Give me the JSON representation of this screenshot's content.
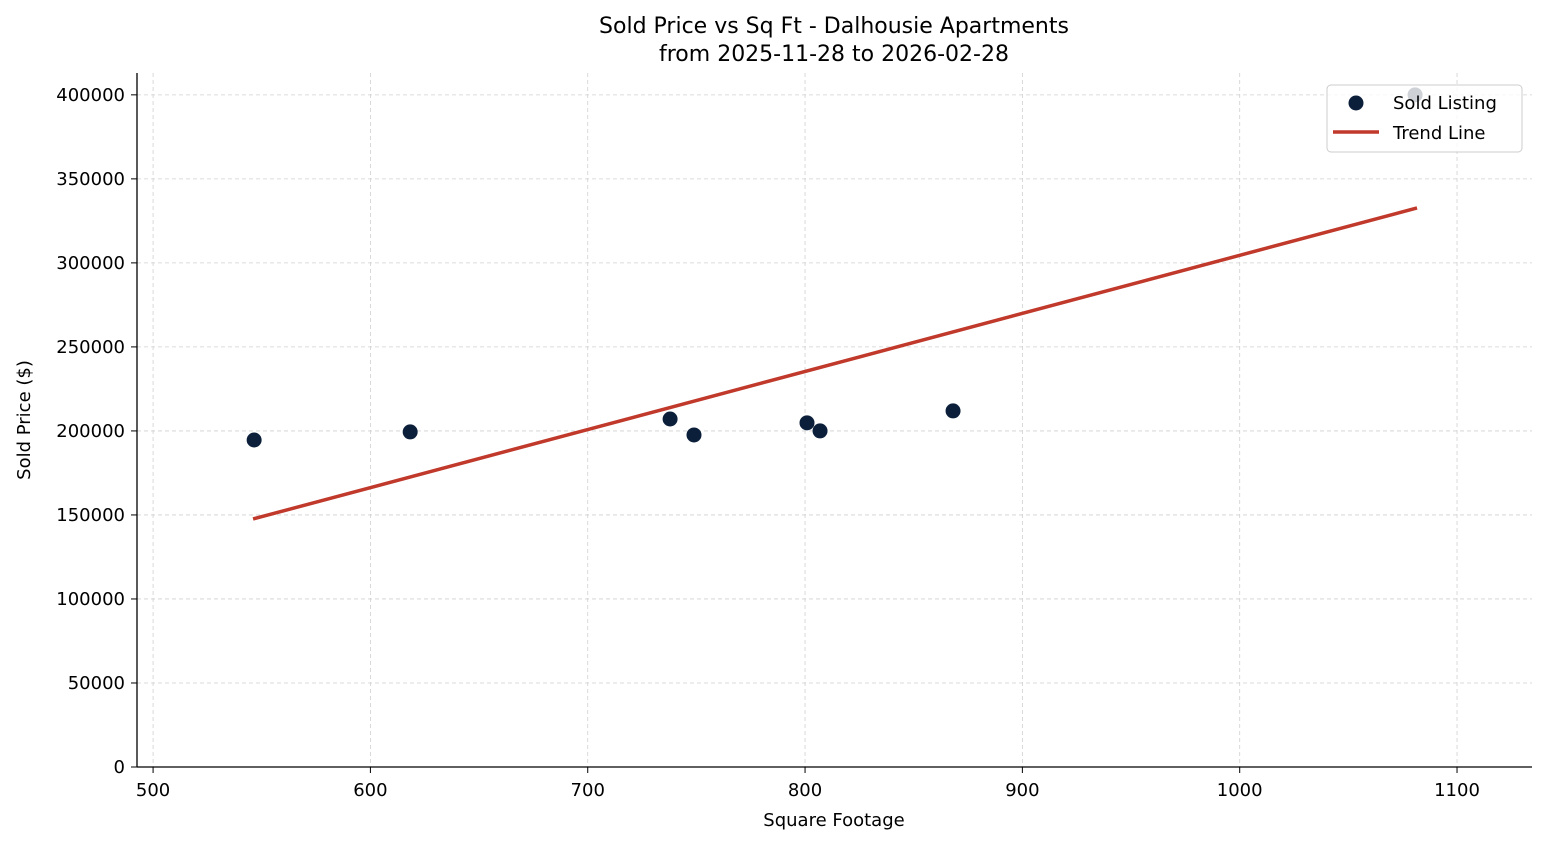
{
  "chart_data": {
    "type": "scatter",
    "title": "Sold Price vs Sq Ft - Dalhousie Apartments",
    "subtitle": "from 2025-11-28 to 2026-02-28",
    "xlabel": "Square Footage",
    "ylabel": "Sold Price ($)",
    "xlim": [
      492.6,
      1134.5
    ],
    "ylim": [
      0,
      413000
    ],
    "xticks": [
      500,
      600,
      700,
      800,
      900,
      1000,
      1100
    ],
    "yticks": [
      0,
      50000,
      100000,
      150000,
      200000,
      250000,
      300000,
      350000,
      400000
    ],
    "grid": true,
    "legend_position": "top-right",
    "series": [
      {
        "name": "Sold Listing",
        "kind": "scatter",
        "color": "#0b1f3a",
        "points": [
          [
            546.5,
            194600
          ],
          [
            618.3,
            199400
          ],
          [
            737.9,
            207100
          ],
          [
            748.9,
            197600
          ],
          [
            800.9,
            204800
          ],
          [
            806.9,
            200000
          ],
          [
            868.1,
            211900
          ],
          [
            1080.7,
            400000
          ]
        ]
      },
      {
        "name": "Trend Line",
        "kind": "line",
        "color": "#c0392b",
        "points": [
          [
            546,
            147600
          ],
          [
            1081.6,
            332700
          ]
        ]
      }
    ]
  }
}
